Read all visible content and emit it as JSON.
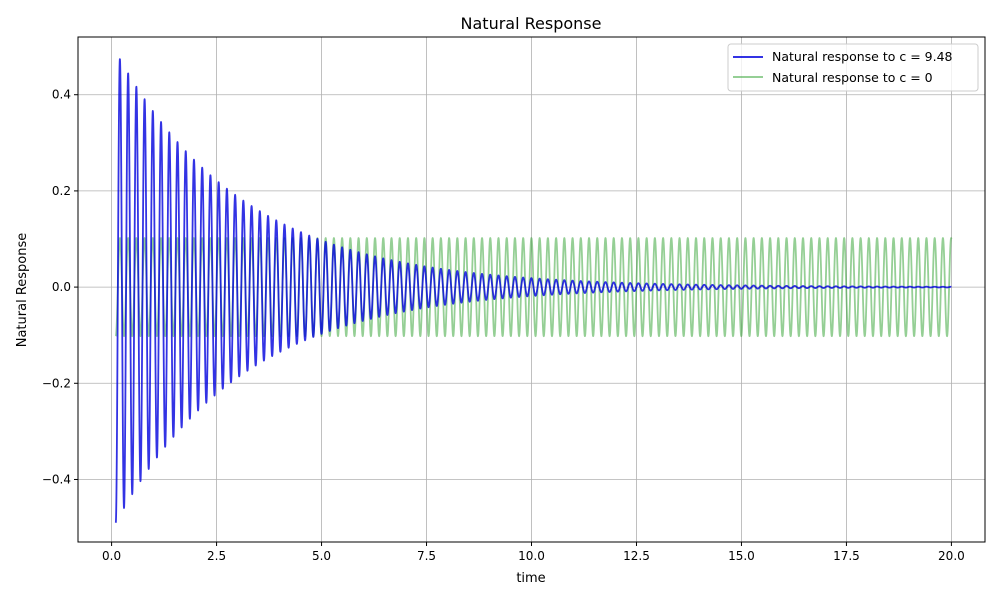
{
  "chart_data": {
    "type": "line",
    "title": "Natural Response",
    "xlabel": "time",
    "ylabel": "Natural Response",
    "xlim": [
      -0.8,
      20.8
    ],
    "ylim": [
      -0.53,
      0.52
    ],
    "xticks": [
      0.0,
      2.5,
      5.0,
      7.5,
      10.0,
      12.5,
      15.0,
      17.5,
      20.0
    ],
    "xtick_labels": [
      "0.0",
      "2.5",
      "5.0",
      "7.5",
      "10.0",
      "12.5",
      "15.0",
      "17.5",
      "20.0"
    ],
    "yticks": [
      -0.4,
      -0.2,
      0.0,
      0.2,
      0.4
    ],
    "ytick_labels": [
      "−0.4",
      "−0.2",
      "0.0",
      "0.2",
      "0.4"
    ],
    "grid": true,
    "legend_position": "upper right",
    "series": [
      {
        "name": "Natural response to c = 9.48",
        "color": "#0000dd",
        "opacity": 0.8,
        "t_start": 0.1,
        "t_end": 20.0,
        "period": 0.196,
        "initial_amplitude": 0.49,
        "decay_rate": 0.33,
        "shape": "damped cosine, negative at start"
      },
      {
        "name": "Natural response to c = 0",
        "color": "#2ca02c",
        "opacity": 0.5,
        "t_start": 0.1,
        "t_end": 20.0,
        "period": 0.196,
        "amplitude": 0.102,
        "shape": "undamped cosine, negative at start"
      }
    ]
  }
}
